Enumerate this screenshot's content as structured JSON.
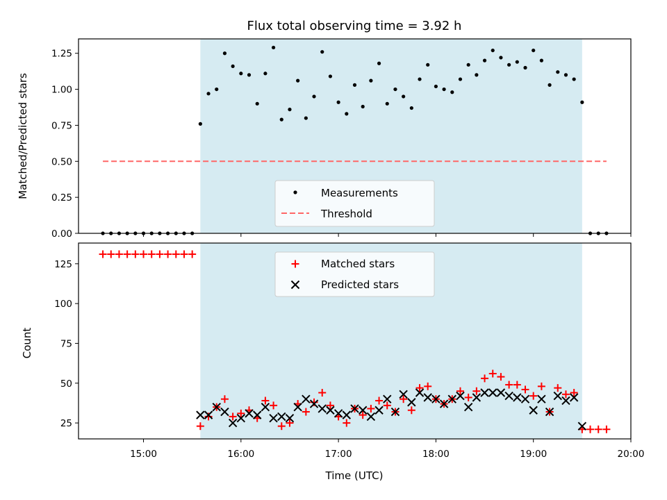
{
  "title": "Flux total observing time = 3.92 h",
  "colors": {
    "window": "#add8e6",
    "measurement": "#000000",
    "threshold": "#ff6666",
    "matched": "#ff0000",
    "predicted": "#000000"
  },
  "chart_data": [
    {
      "type": "scatter",
      "ylabel": "Matched/Predicted stars",
      "xlim": [
        "14:20",
        "20:00"
      ],
      "ylim": [
        0,
        1.35
      ],
      "yticks": [
        "0.00",
        "0.25",
        "0.50",
        "0.75",
        "1.00",
        "1.25"
      ],
      "shaded_window": [
        "15:35",
        "19:30"
      ],
      "legend": {
        "position": "lower center",
        "entries": [
          "Measurements",
          "Threshold"
        ]
      },
      "threshold": {
        "name": "Threshold",
        "value": 0.5,
        "x_range": [
          "14:35",
          "19:45"
        ]
      },
      "series": [
        {
          "name": "Measurements",
          "x": [
            "14:35",
            "14:40",
            "14:45",
            "14:50",
            "14:55",
            "15:00",
            "15:05",
            "15:10",
            "15:15",
            "15:20",
            "15:25",
            "15:30",
            "15:35",
            "15:40",
            "15:45",
            "15:50",
            "15:55",
            "16:00",
            "16:05",
            "16:10",
            "16:15",
            "16:20",
            "16:25",
            "16:30",
            "16:35",
            "16:40",
            "16:45",
            "16:50",
            "16:55",
            "17:00",
            "17:05",
            "17:10",
            "17:15",
            "17:20",
            "17:25",
            "17:30",
            "17:35",
            "17:40",
            "17:45",
            "17:50",
            "17:55",
            "18:00",
            "18:05",
            "18:10",
            "18:15",
            "18:20",
            "18:25",
            "18:30",
            "18:35",
            "18:40",
            "18:45",
            "18:50",
            "18:55",
            "19:00",
            "19:05",
            "19:10",
            "19:15",
            "19:20",
            "19:25",
            "19:30",
            "19:35",
            "19:40",
            "19:45"
          ],
          "y": [
            0,
            0,
            0,
            0,
            0,
            0,
            0,
            0,
            0,
            0,
            0,
            0,
            0.76,
            0.97,
            1.0,
            1.25,
            1.16,
            1.11,
            1.1,
            0.9,
            1.11,
            1.29,
            0.79,
            0.86,
            1.06,
            0.8,
            0.95,
            1.26,
            1.09,
            0.91,
            0.83,
            1.03,
            0.88,
            1.06,
            1.18,
            0.9,
            1.0,
            0.95,
            0.87,
            1.07,
            1.17,
            1.02,
            1.0,
            0.98,
            1.07,
            1.17,
            1.1,
            1.2,
            1.27,
            1.22,
            1.17,
            1.19,
            1.15,
            1.27,
            1.2,
            1.03,
            1.12,
            1.1,
            1.07,
            0.91,
            0,
            0,
            0
          ]
        }
      ]
    },
    {
      "type": "scatter",
      "xlabel": "Time (UTC)",
      "ylabel": "Count",
      "xlim": [
        "14:20",
        "20:00"
      ],
      "ylim": [
        15,
        138
      ],
      "xticks": [
        "15:00",
        "16:00",
        "17:00",
        "18:00",
        "19:00",
        "20:00"
      ],
      "yticks": [
        "25",
        "50",
        "75",
        "100",
        "125"
      ],
      "shaded_window": [
        "15:35",
        "19:30"
      ],
      "legend": {
        "position": "upper center",
        "entries": [
          "Matched stars",
          "Predicted stars"
        ]
      },
      "series": [
        {
          "name": "Matched stars",
          "marker": "plus",
          "x": [
            "14:35",
            "14:40",
            "14:45",
            "14:50",
            "14:55",
            "15:00",
            "15:05",
            "15:10",
            "15:15",
            "15:20",
            "15:25",
            "15:30",
            "15:35",
            "15:40",
            "15:45",
            "15:50",
            "15:55",
            "16:00",
            "16:05",
            "16:10",
            "16:15",
            "16:20",
            "16:25",
            "16:30",
            "16:35",
            "16:40",
            "16:45",
            "16:50",
            "16:55",
            "17:00",
            "17:05",
            "17:10",
            "17:15",
            "17:20",
            "17:25",
            "17:30",
            "17:35",
            "17:40",
            "17:45",
            "17:50",
            "17:55",
            "18:00",
            "18:05",
            "18:10",
            "18:15",
            "18:20",
            "18:25",
            "18:30",
            "18:35",
            "18:40",
            "18:45",
            "18:50",
            "18:55",
            "19:00",
            "19:05",
            "19:10",
            "19:15",
            "19:20",
            "19:25",
            "19:30",
            "19:35",
            "19:40",
            "19:45"
          ],
          "y": [
            131,
            131,
            131,
            131,
            131,
            131,
            131,
            131,
            131,
            131,
            131,
            131,
            23,
            29,
            35,
            40,
            29,
            31,
            33,
            28,
            39,
            36,
            23,
            25,
            37,
            32,
            38,
            44,
            36,
            29,
            25,
            34,
            30,
            34,
            39,
            36,
            32,
            40,
            33,
            47,
            48,
            40,
            37,
            40,
            45,
            41,
            45,
            53,
            56,
            54,
            49,
            49,
            46,
            42,
            48,
            32,
            47,
            43,
            44,
            21,
            21,
            21,
            21
          ]
        },
        {
          "name": "Predicted stars",
          "marker": "x",
          "x": [
            "15:35",
            "15:40",
            "15:45",
            "15:50",
            "15:55",
            "16:00",
            "16:05",
            "16:10",
            "16:15",
            "16:20",
            "16:25",
            "16:30",
            "16:35",
            "16:40",
            "16:45",
            "16:50",
            "16:55",
            "17:00",
            "17:05",
            "17:10",
            "17:15",
            "17:20",
            "17:25",
            "17:30",
            "17:35",
            "17:40",
            "17:45",
            "17:50",
            "17:55",
            "18:00",
            "18:05",
            "18:10",
            "18:15",
            "18:20",
            "18:25",
            "18:30",
            "18:35",
            "18:40",
            "18:45",
            "18:50",
            "18:55",
            "19:00",
            "19:05",
            "19:10",
            "19:15",
            "19:20",
            "19:25",
            "19:30"
          ],
          "y": [
            30,
            30,
            35,
            32,
            25,
            28,
            31,
            30,
            35,
            28,
            29,
            28,
            35,
            40,
            37,
            34,
            33,
            31,
            30,
            34,
            33,
            29,
            33,
            40,
            32,
            43,
            38,
            44,
            41,
            40,
            37,
            40,
            42,
            35,
            41,
            44,
            44,
            44,
            42,
            41,
            40,
            33,
            40,
            32,
            42,
            39,
            41,
            23
          ]
        }
      ]
    }
  ]
}
